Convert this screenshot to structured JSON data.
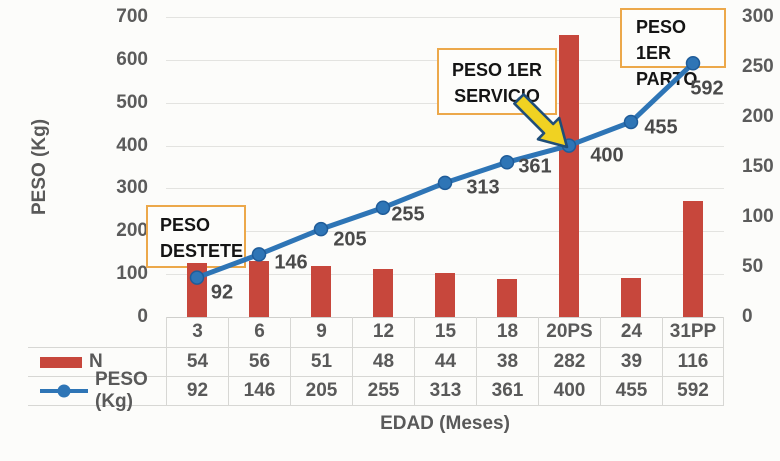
{
  "chart_data": {
    "type": "combo",
    "categories": [
      "3",
      "6",
      "9",
      "12",
      "15",
      "18",
      "20PS",
      "24",
      "31PP"
    ],
    "series": [
      {
        "name": "N",
        "type": "bar",
        "axis": "right",
        "color": "#C7473C",
        "values": [
          54,
          56,
          51,
          48,
          44,
          38,
          282,
          39,
          116
        ]
      },
      {
        "name": "PESO (Kg)",
        "type": "line",
        "axis": "left",
        "color": "#2E75B6",
        "marker_stroke": "#1F5C99",
        "values": [
          92,
          146,
          205,
          255,
          313,
          361,
          400,
          455,
          592
        ]
      }
    ],
    "xlabel": "EDAD (Meses)",
    "ylabel_left": "PESO (Kg)",
    "left_axis": {
      "min": 0,
      "max": 700,
      "step": 100
    },
    "right_axis": {
      "min": 0,
      "max": 300,
      "step": 50
    },
    "grid": "horizontal-major",
    "legend_position": "table-left",
    "data_labels_visible": true,
    "annotations": [
      {
        "id": "peso-destete",
        "lines": [
          "PESO",
          "DESTETE"
        ]
      },
      {
        "id": "peso-1er-servicio",
        "lines": [
          "PESO 1ER",
          "SERVICIO"
        ],
        "arrow_to_value": 400
      },
      {
        "id": "peso-1er-parto",
        "lines": [
          "PESO 1ER",
          "PARTO"
        ]
      }
    ],
    "annotation_border_color": "#ECA84A",
    "arrow_fill_color": "#F0D222",
    "arrow_stroke_color": "#1F4E79",
    "gridline_color": "#E3E3E0",
    "axis_text_color": "#5B5B5B"
  }
}
